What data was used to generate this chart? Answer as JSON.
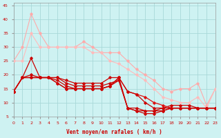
{
  "background_color": "#cef2f2",
  "grid_color": "#a8d8d8",
  "xlabel": "Vent moyen/en rafales ( km/h )",
  "xlabel_color": "#cc0000",
  "ylabel_color": "#cc0000",
  "ylim": [
    5,
    46
  ],
  "xlim": [
    0,
    23
  ],
  "yticks": [
    5,
    10,
    15,
    20,
    25,
    30,
    35,
    40,
    45
  ],
  "xticks": [
    0,
    1,
    2,
    3,
    4,
    5,
    6,
    7,
    8,
    9,
    10,
    11,
    12,
    13,
    14,
    15,
    16,
    17,
    18,
    19,
    20,
    21,
    22,
    23
  ],
  "lines": [
    {
      "x": [
        0,
        1,
        2,
        3,
        4,
        5,
        6,
        7,
        8,
        9,
        10,
        11,
        12,
        13,
        14,
        15,
        16,
        17,
        18,
        19,
        20,
        21,
        22,
        23
      ],
      "y": [
        25,
        30,
        42,
        35,
        30,
        30,
        30,
        30,
        32,
        30,
        28,
        28,
        28,
        25,
        22,
        20,
        18,
        15,
        14,
        15,
        15,
        17,
        9,
        15
      ],
      "color": "#ffaaaa",
      "lw": 0.8
    },
    {
      "x": [
        0,
        1,
        2,
        3,
        4,
        5,
        6,
        7,
        8,
        9,
        10,
        11,
        12,
        13,
        14,
        15,
        16,
        17,
        18,
        19,
        20,
        21,
        22,
        23
      ],
      "y": [
        25,
        25,
        35,
        30,
        30,
        30,
        30,
        30,
        30,
        28,
        28,
        25,
        24,
        22,
        20,
        18,
        15,
        12,
        11,
        10,
        10,
        12,
        8,
        15
      ],
      "color": "#ffbbbb",
      "lw": 0.8
    },
    {
      "x": [
        0,
        1,
        2,
        3,
        4,
        5,
        6,
        7,
        8,
        9,
        10,
        11,
        12,
        13,
        14,
        15,
        16,
        17,
        18,
        19,
        20,
        21,
        22,
        23
      ],
      "y": [
        14,
        19,
        26,
        19,
        19,
        19,
        18,
        17,
        17,
        17,
        17,
        19,
        19,
        8,
        8,
        7,
        7,
        8,
        9,
        9,
        9,
        8,
        8,
        8
      ],
      "color": "#cc0000",
      "lw": 0.9
    },
    {
      "x": [
        0,
        1,
        2,
        3,
        4,
        5,
        6,
        7,
        8,
        9,
        10,
        11,
        12,
        13,
        14,
        15,
        16,
        17,
        18,
        19,
        20,
        21,
        22,
        23
      ],
      "y": [
        14,
        19,
        20,
        19,
        19,
        19,
        17,
        16,
        16,
        16,
        16,
        17,
        18,
        8,
        7,
        7,
        7,
        7,
        8,
        8,
        8,
        8,
        8,
        8
      ],
      "color": "#cc0000",
      "lw": 0.9
    },
    {
      "x": [
        0,
        1,
        2,
        3,
        4,
        5,
        6,
        7,
        8,
        9,
        10,
        11,
        12,
        13,
        14,
        15,
        16,
        17,
        18,
        19,
        20,
        21,
        22,
        23
      ],
      "y": [
        14,
        19,
        19,
        19,
        19,
        18,
        16,
        15,
        15,
        15,
        15,
        16,
        18,
        8,
        7,
        6,
        6,
        7,
        8,
        8,
        8,
        8,
        8,
        8
      ],
      "color": "#cc0000",
      "lw": 0.9
    },
    {
      "x": [
        0,
        1,
        2,
        3,
        4,
        5,
        6,
        7,
        8,
        9,
        10,
        11,
        12,
        13,
        14,
        15,
        16,
        17,
        18,
        19,
        20,
        21,
        22,
        23
      ],
      "y": [
        14,
        19,
        19,
        19,
        19,
        17,
        15,
        15,
        15,
        15,
        15,
        16,
        19,
        14,
        13,
        12,
        10,
        9,
        8,
        8,
        8,
        8,
        8,
        8
      ],
      "color": "#dd1111",
      "lw": 0.9
    },
    {
      "x": [
        0,
        1,
        2,
        3,
        4,
        5,
        6,
        7,
        8,
        9,
        10,
        11,
        12,
        13,
        14,
        15,
        16,
        17,
        18,
        19,
        20,
        21,
        22,
        23
      ],
      "y": [
        14,
        19,
        19,
        19,
        19,
        17,
        15,
        15,
        15,
        15,
        15,
        16,
        19,
        14,
        13,
        10,
        8,
        8,
        8,
        8,
        8,
        8,
        8,
        8
      ],
      "color": "#cc0000",
      "lw": 0.9
    }
  ]
}
